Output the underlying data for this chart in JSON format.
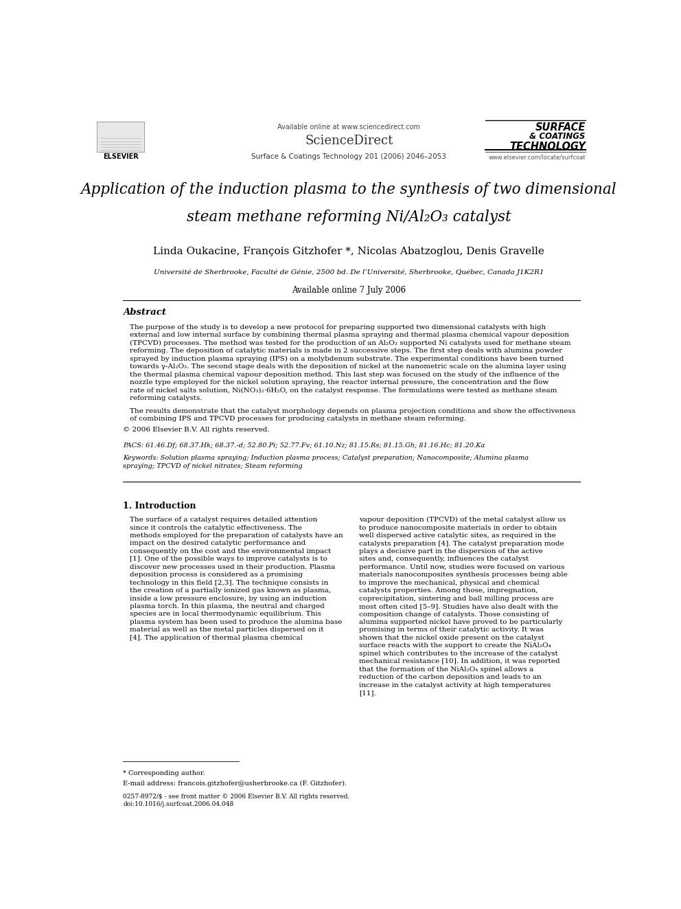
{
  "bg_color": "#ffffff",
  "page_width": 9.92,
  "page_height": 13.23,
  "header_available_online": "Available online at www.sciencedirect.com",
  "header_sciencedirect": "ScienceDirect",
  "header_journal": "Surface & Coatings Technology 201 (2006) 2046–2053",
  "header_elsevier": "ELSEVIER",
  "header_jt1": "SURFACE",
  "header_jt2": "& COATINGS",
  "header_jt3": "TECHNOLOGY",
  "header_website": "www.elsevier.com/locate/surfcoat",
  "title_line1": "Application of the induction plasma to the synthesis of two dimensional",
  "title_line2": "steam methane reforming Ni/Al₂O₃ catalyst",
  "authors": "Linda Oukacine, François Gitzhofer *, Nicolas Abatzoglou, Denis Gravelle",
  "affiliation": "Université de Sherbrooke, Faculté de Génie, 2500 bd. De l’Université, Sherbrooke, Québec, Canada J1K2R1",
  "available_date": "Available online 7 July 2006",
  "abstract_title": "Abstract",
  "abstract_text1": "The purpose of the study is to develop a new protocol for preparing supported two dimensional catalysts with high external and low internal surface by combining thermal plasma spraying and thermal plasma chemical vapour deposition (TPCVD) processes. The method was tested for the production of an Al₂O₃ supported Ni catalysts used for methane steam reforming. The deposition of catalytic materials is made in 2 successive steps. The first step deals with alumina powder sprayed by induction plasma spraying (IPS) on a molybdenum substrate. The experimental conditions have been turned towards γ-Al₂O₃. The second stage deals with the deposition of nickel at the nanometric scale on the alumina layer using the thermal plasma chemical vapour deposition method. This last step was focused on the study of the influence of the nozzle type employed for the nickel solution spraying, the reactor internal pressure, the concentration and the flow rate of nickel salts solution, Ni(NO₃)₂·6H₂O, on the catalyst response. The formulations were tested as methane steam reforming catalysts.",
  "abstract_text2": "The results demonstrate that the catalyst morphology depends on plasma projection conditions and show the effectiveness of combining IPS and TPCVD processes for producing catalysts in methane steam reforming.",
  "copyright": "© 2006 Elsevier B.V. All rights reserved.",
  "pacs": "PACS: 61.46.Df; 68.37.Hk; 68.37.-d; 52.80.Pi; 52.77.Fv; 61.10.Nz; 81.15.Rs; 81.15.Gh; 81.16.Hc; 81.20.Ka",
  "keywords": "Keywords: Solution plasma spraying; Induction plasma process; Catalyst preparation; Nanocomposite; Alumina plasma spraying; TPCVD of nickel nitrates; Steam reforming",
  "section1_title": "1. Introduction",
  "intro_col1": "The surface of a catalyst requires detailed attention since it controls the catalytic effectiveness. The methods employed for the preparation of catalysts have an impact on the desired catalytic performance and consequently on the cost and the environmental impact [1]. One of the possible ways to improve catalysts is to discover new processes used in their production. Plasma deposition process is considered as a promising technology in this field [2,3]. The technique consists in the creation of a partially ionized gas known as plasma, inside a low pressure enclosure, by using an induction plasma torch. In this plasma, the neutral and charged species are in local thermodynamic equilibrium. This plasma system has been used to produce the alumina base material as well as the metal particles dispersed on it [4]. The application of thermal plasma chemical",
  "intro_col2": "vapour deposition (TPCVD) of the metal catalyst allow us to produce nanocomposite materials in order to obtain well dispersed active catalytic sites, as required in the catalysts preparation [4]. The catalyst preparation mode plays a decisive part in the dispersion of the active sites and, consequently, influences the catalyst performance. Until now, studies were focused on various materials nanocomposites synthesis processes being able to improve the mechanical, physical and chemical catalysts properties. Among those, impregnation, coprecipitation, sintering and ball milling process are most often cited [5–9]. Studies have also dealt with the composition change of catalysts. Those consisting of alumina supported nickel have proved to be particularly promising in terms of their catalytic activity. It was shown that the nickel oxide present on the catalyst surface reacts with the support to create the NiAl₂O₄ spinel which contributes to the increase of the catalyst mechanical resistance [10]. In addition, it was reported that the formation of the NiAl₂O₄ spinel allows a reduction of the carbon deposition and leads to an increase in the catalyst activity at high temperatures [11].",
  "footnote_star": "* Corresponding author.",
  "footnote_email": "E-mail address: francois.gitzhofer@usherbrooke.ca (F. Gitzhofer).",
  "footnote_issn": "0257-8972/$ - see front matter © 2006 Elsevier B.V. All rights reserved.",
  "footnote_doi": "doi:10.1016/j.surfcoat.2006.04.048"
}
